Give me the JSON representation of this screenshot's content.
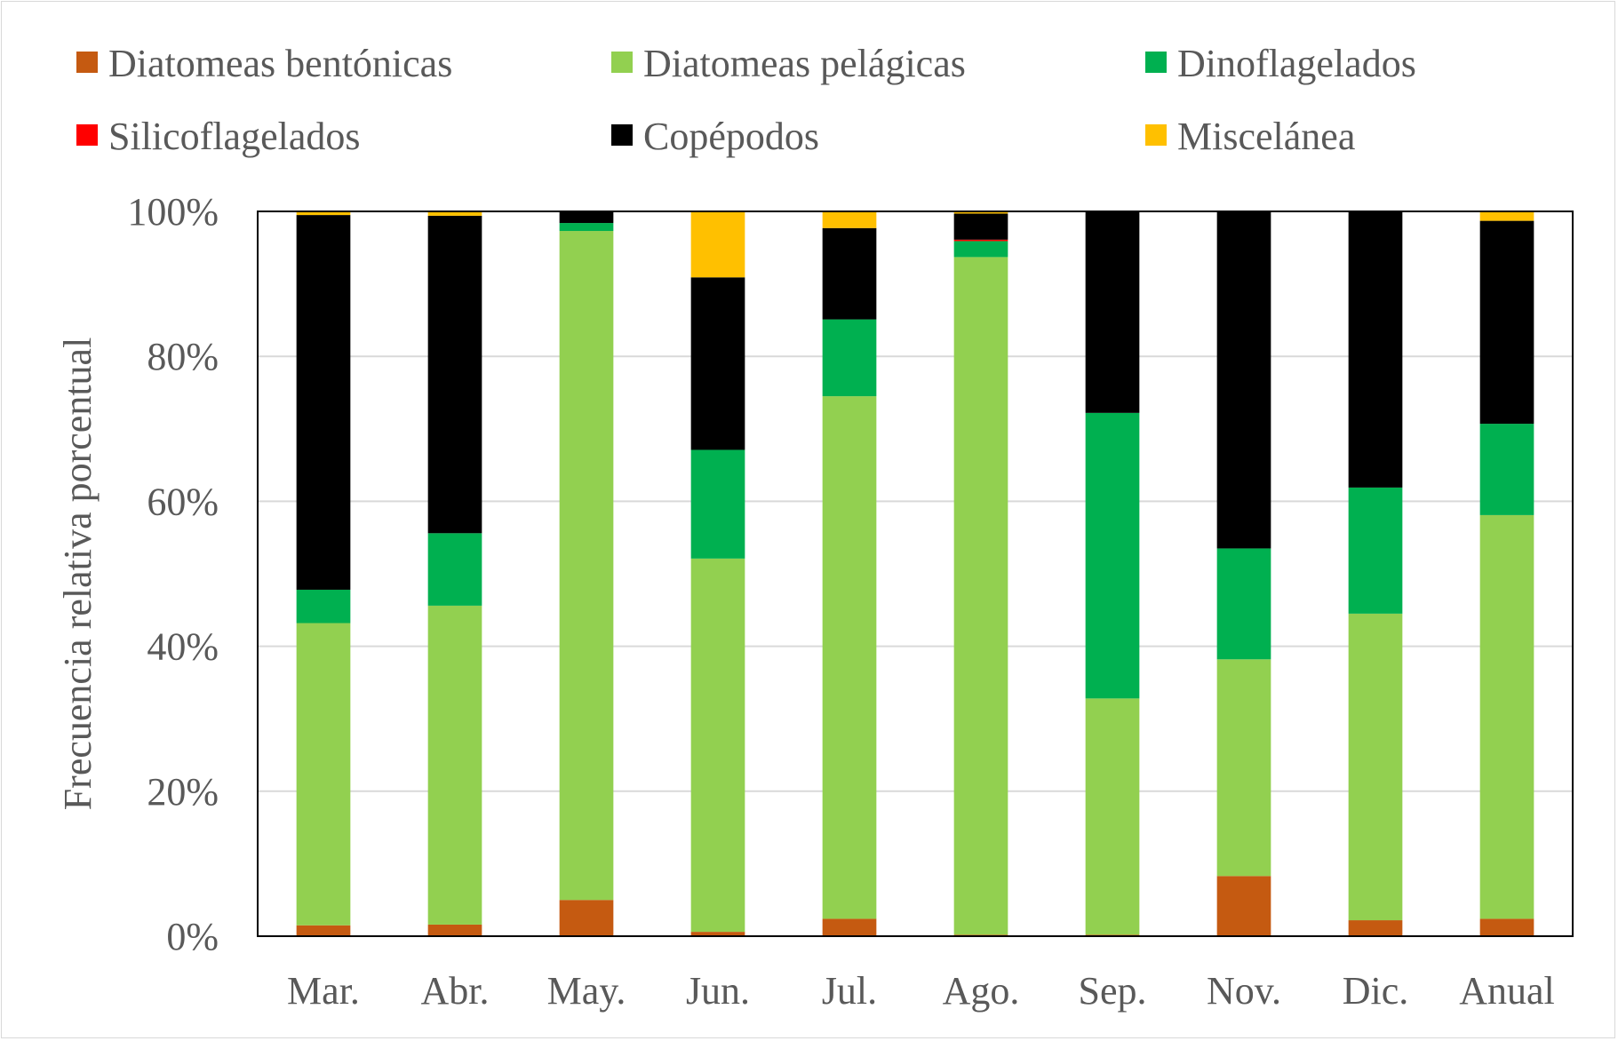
{
  "chart_data": {
    "type": "bar",
    "stacked": true,
    "normalized": true,
    "ylabel": "Frecuencia relativa porcentual",
    "xlabel": "",
    "ylim": [
      0,
      100
    ],
    "y_ticks": [
      "0%",
      "20%",
      "40%",
      "60%",
      "80%",
      "100%"
    ],
    "grid": true,
    "legend_position": "top",
    "categories": [
      "Mar.",
      "Abr.",
      "May.",
      "Jun.",
      "Jul.",
      "Ago.",
      "Sep.",
      "Nov.",
      "Dic.",
      "Anual"
    ],
    "series": [
      {
        "name": "Diatomeas bentónicas",
        "color": "#c55a11",
        "values": [
          1.5,
          1.6,
          5.0,
          0.6,
          2.4,
          0.2,
          0.2,
          8.3,
          2.2,
          2.4
        ]
      },
      {
        "name": "Diatomeas pelágicas",
        "color": "#92d050",
        "values": [
          41.7,
          44.0,
          92.3,
          51.5,
          72.1,
          93.5,
          32.6,
          29.9,
          42.3,
          55.7
        ]
      },
      {
        "name": "Dinoflagelados",
        "color": "#00b050",
        "values": [
          4.6,
          10.0,
          1.1,
          15.0,
          10.6,
          2.2,
          39.4,
          15.3,
          17.4,
          12.6
        ]
      },
      {
        "name": "Silicoflagelados",
        "color": "#ff0000",
        "values": [
          0,
          0,
          0,
          0,
          0,
          0.2,
          0,
          0,
          0,
          0
        ]
      },
      {
        "name": "Copépodos",
        "color": "#000000",
        "values": [
          51.7,
          43.8,
          1.6,
          23.8,
          12.6,
          3.6,
          27.8,
          46.5,
          38.1,
          28.0
        ]
      },
      {
        "name": "Miscelánea",
        "color": "#ffc000",
        "values": [
          0.5,
          0.6,
          0,
          9.1,
          2.3,
          0.3,
          0,
          0,
          0,
          1.3
        ]
      }
    ]
  }
}
